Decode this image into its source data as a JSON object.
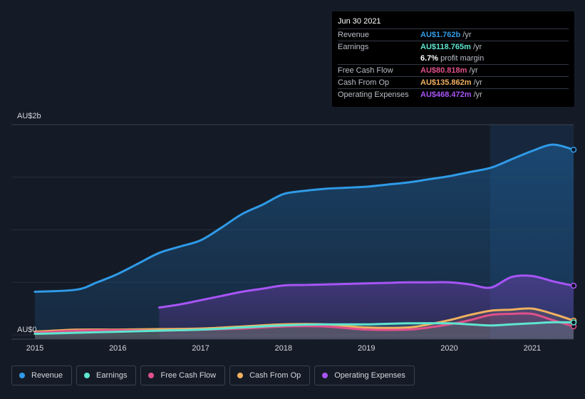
{
  "tooltip": {
    "date": "Jun 30 2021",
    "rows": [
      {
        "label": "Revenue",
        "value": "AU$1.762b",
        "unit": "/yr",
        "color": "#2f9be8"
      },
      {
        "label": "Earnings",
        "value": "AU$118.765m",
        "unit": "/yr",
        "color": "#5ee6d0"
      },
      {
        "label": "",
        "value": "6.7%",
        "unit": "profit margin",
        "color": "#ffffff"
      },
      {
        "label": "Free Cash Flow",
        "value": "AU$80.818m",
        "unit": "/yr",
        "color": "#e0508a"
      },
      {
        "label": "Cash From Op",
        "value": "AU$135.862m",
        "unit": "/yr",
        "color": "#f0b060"
      },
      {
        "label": "Operating Expenses",
        "value": "AU$468.472m",
        "unit": "/yr",
        "color": "#a855f7"
      }
    ]
  },
  "legend": [
    {
      "label": "Revenue",
      "color": "#2f9be8"
    },
    {
      "label": "Earnings",
      "color": "#5ee6d0"
    },
    {
      "label": "Free Cash Flow",
      "color": "#e0508a"
    },
    {
      "label": "Cash From Op",
      "color": "#f0b060"
    },
    {
      "label": "Operating Expenses",
      "color": "#a855f7"
    }
  ],
  "chart_data": {
    "type": "area",
    "y_top_label": "AU$2b",
    "y_bottom_label": "AU$0",
    "ylim": [
      0,
      2.0
    ],
    "xlim": [
      2015.0,
      2021.5
    ],
    "x_ticks": [
      "2015",
      "2016",
      "2017",
      "2018",
      "2019",
      "2020",
      "2021"
    ],
    "series": [
      {
        "name": "Revenue",
        "color": "#2f9be8",
        "x": [
          2015.0,
          2015.5,
          2015.75,
          2016.0,
          2016.25,
          2016.5,
          2016.75,
          2017.0,
          2017.25,
          2017.5,
          2017.75,
          2018.0,
          2018.25,
          2018.5,
          2018.75,
          2019.0,
          2019.25,
          2019.5,
          2019.75,
          2020.0,
          2020.25,
          2020.5,
          2020.75,
          2021.0,
          2021.25,
          2021.5
        ],
        "y": [
          0.41,
          0.43,
          0.5,
          0.58,
          0.68,
          0.78,
          0.84,
          0.9,
          1.02,
          1.15,
          1.24,
          1.34,
          1.37,
          1.39,
          1.4,
          1.41,
          1.43,
          1.45,
          1.48,
          1.51,
          1.55,
          1.59,
          1.67,
          1.75,
          1.81,
          1.762
        ]
      },
      {
        "name": "Operating Expenses",
        "color": "#a855f7",
        "x": [
          2016.5,
          2016.75,
          2017.0,
          2017.25,
          2017.5,
          2017.75,
          2018.0,
          2018.25,
          2018.5,
          2018.75,
          2019.0,
          2019.25,
          2019.5,
          2019.75,
          2020.0,
          2020.25,
          2020.5,
          2020.75,
          2021.0,
          2021.25,
          2021.5
        ],
        "y": [
          0.26,
          0.29,
          0.33,
          0.37,
          0.41,
          0.44,
          0.47,
          0.475,
          0.48,
          0.485,
          0.49,
          0.495,
          0.5,
          0.5,
          0.5,
          0.48,
          0.45,
          0.55,
          0.56,
          0.51,
          0.468
        ]
      },
      {
        "name": "Cash From Op",
        "color": "#f0b060",
        "x": [
          2015.0,
          2015.5,
          2016.0,
          2016.5,
          2017.0,
          2017.5,
          2018.0,
          2018.5,
          2019.0,
          2019.5,
          2019.75,
          2020.0,
          2020.25,
          2020.5,
          2020.75,
          2021.0,
          2021.25,
          2021.5
        ],
        "y": [
          0.03,
          0.05,
          0.05,
          0.055,
          0.06,
          0.08,
          0.1,
          0.1,
          0.07,
          0.07,
          0.1,
          0.14,
          0.19,
          0.23,
          0.24,
          0.25,
          0.2,
          0.136
        ]
      },
      {
        "name": "Free Cash Flow",
        "color": "#e0508a",
        "x": [
          2015.0,
          2015.5,
          2016.0,
          2016.5,
          2017.0,
          2017.5,
          2018.0,
          2018.5,
          2019.0,
          2019.5,
          2019.75,
          2020.0,
          2020.25,
          2020.5,
          2020.75,
          2021.0,
          2021.25,
          2021.5
        ],
        "y": [
          0.02,
          0.04,
          0.045,
          0.04,
          0.05,
          0.06,
          0.08,
          0.08,
          0.05,
          0.05,
          0.07,
          0.1,
          0.14,
          0.19,
          0.2,
          0.2,
          0.14,
          0.081
        ]
      },
      {
        "name": "Earnings",
        "color": "#5ee6d0",
        "x": [
          2015.0,
          2015.5,
          2016.0,
          2016.5,
          2017.0,
          2017.5,
          2018.0,
          2018.5,
          2019.0,
          2019.5,
          2020.0,
          2020.25,
          2020.5,
          2020.75,
          2021.0,
          2021.25,
          2021.5
        ],
        "y": [
          0.01,
          0.02,
          0.03,
          0.04,
          0.05,
          0.07,
          0.09,
          0.1,
          0.1,
          0.11,
          0.11,
          0.1,
          0.09,
          0.1,
          0.11,
          0.12,
          0.119
        ]
      }
    ]
  }
}
